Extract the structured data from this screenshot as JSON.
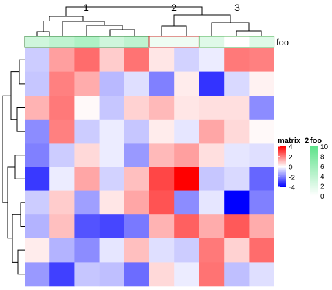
{
  "chart_data": {
    "type": "heatmap",
    "column_split_labels": [
      "1",
      "2",
      "3"
    ],
    "column_split_sizes": [
      5,
      2,
      3
    ],
    "annotation_name": "foo",
    "annotation_values": [
      3,
      4,
      5,
      3,
      4,
      1,
      1,
      2,
      0,
      2
    ],
    "matrix": [
      [
        -0.8,
        1.5,
        2.3,
        0.8,
        2.2,
        0.4,
        -0.7,
        -0.3,
        2.1,
        2.0
      ],
      [
        -0.9,
        2.0,
        1.3,
        -1.1,
        -0.5,
        -2.0,
        0.3,
        -3.2,
        -0.6,
        0.2
      ],
      [
        1.2,
        2.1,
        0.1,
        -0.9,
        0.7,
        1.1,
        0.4,
        0.5,
        0.5,
        -1.8
      ],
      [
        -1.8,
        2.0,
        -0.8,
        -0.3,
        -0.9,
        0.3,
        -0.4,
        1.4,
        0.6,
        0.1
      ],
      [
        -2.0,
        -0.8,
        0.6,
        -0.3,
        -1.6,
        1.1,
        1.5,
        0.5,
        -0.4,
        -0.5
      ],
      [
        -3.1,
        -0.3,
        1.4,
        -0.7,
        1.0,
        2.9,
        4.2,
        -0.9,
        -0.6,
        -2.4
      ],
      [
        -0.8,
        0.8,
        -1.5,
        0.4,
        1.4,
        2.7,
        -1.8,
        -0.4,
        -4.0,
        -2.0
      ],
      [
        -1.2,
        1.0,
        -2.7,
        -2.9,
        -2.1,
        1.2,
        2.5,
        1.3,
        2.6,
        1.3
      ],
      [
        0.3,
        -1.2,
        -1.8,
        -0.4,
        1.0,
        -0.5,
        -0.8,
        2.1,
        0.7,
        2.3
      ],
      [
        -1.6,
        -3.0,
        -0.9,
        -1.0,
        -2.3,
        0.6,
        -0.3,
        2.2,
        -1.0,
        -0.5
      ]
    ],
    "matrix_legend": {
      "title": "matrix_2",
      "ticks": [
        4,
        2,
        0,
        -2,
        -4
      ],
      "range": [
        -4,
        4
      ],
      "colors": {
        "low": "#0000FF",
        "mid": "#FFFFFF",
        "high": "#FF0000"
      }
    },
    "annotation_legend": {
      "title": "foo",
      "ticks": [
        10,
        8,
        6,
        4,
        2,
        0
      ],
      "range": [
        0,
        10
      ],
      "colors": {
        "low": "#FFFFFF",
        "high": "#5EE28A"
      }
    },
    "annotation_group_border_colors": [
      "#2E7D32",
      "#D32F2F",
      "#4CAF50"
    ],
    "row_dendrogram": true,
    "column_dendrogram": true
  }
}
